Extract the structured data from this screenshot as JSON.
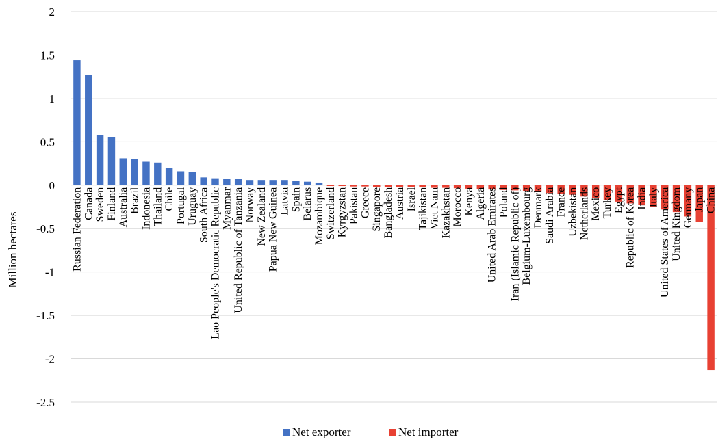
{
  "chart_data": {
    "type": "bar",
    "title": "",
    "xlabel": "",
    "ylabel": "Million hectares",
    "ylim": [
      -2.5,
      2
    ],
    "yticks": [
      2,
      1.5,
      1,
      0.5,
      0,
      -0.5,
      -1,
      -1.5,
      -2,
      -2.5
    ],
    "grid": true,
    "legend_position": "bottom",
    "categories": [
      "Russian Federation",
      "Canada",
      "Sweden",
      "Finland",
      "Australia",
      "Brazil",
      "Indonesia",
      "Thailand",
      "Chile",
      "Portugal",
      "Uruguay",
      "South Africa",
      "Lao People's Democratic Republic",
      "Myanmar",
      "United Republic of Tanzania",
      "Norway",
      "New Zealand",
      "Papua New Guinea",
      "Latvia",
      "Spain",
      "Belarus",
      "Mozambique",
      "Switzerland",
      "Kyrgyzstan",
      "Pakistan",
      "Greece",
      "Singapore",
      "Bangladesh",
      "Austria",
      "Israel",
      "Tajikistan",
      "Viet Nam",
      "Kazakhstan",
      "Morocco",
      "Kenya",
      "Algeria",
      "United Arab Emirates",
      "Poland",
      "Iran (Islamic Republic of)",
      "Belgium-Luxembourg",
      "Denmark",
      "Saudi Arabia",
      "France",
      "Uzbekistan",
      "Netherlands",
      "Mexico",
      "Turkey",
      "Egypt",
      "Republic of Korea",
      "India",
      "Italy",
      "United States of America",
      "United Kingdom",
      "Germany",
      "Japan",
      "China"
    ],
    "series": [
      {
        "name": "Net exporter",
        "color": "#4472C4",
        "values": [
          1.44,
          1.27,
          0.58,
          0.55,
          0.31,
          0.3,
          0.27,
          0.26,
          0.2,
          0.16,
          0.15,
          0.09,
          0.08,
          0.07,
          0.07,
          0.06,
          0.06,
          0.06,
          0.06,
          0.05,
          0.04,
          0.03,
          null,
          null,
          null,
          null,
          null,
          null,
          null,
          null,
          null,
          null,
          null,
          null,
          null,
          null,
          null,
          null,
          null,
          null,
          null,
          null,
          null,
          null,
          null,
          null,
          null,
          null,
          null,
          null,
          null,
          null,
          null,
          null,
          null,
          null
        ]
      },
      {
        "name": "Net importer",
        "color": "#E84133",
        "values": [
          null,
          null,
          null,
          null,
          null,
          null,
          null,
          null,
          null,
          null,
          null,
          null,
          null,
          null,
          null,
          null,
          null,
          null,
          null,
          null,
          null,
          null,
          -0.01,
          -0.01,
          -0.015,
          -0.015,
          -0.02,
          -0.02,
          -0.02,
          -0.025,
          -0.025,
          -0.03,
          -0.03,
          -0.035,
          -0.04,
          -0.045,
          -0.05,
          -0.055,
          -0.06,
          -0.065,
          -0.07,
          -0.09,
          -0.1,
          -0.11,
          -0.13,
          -0.15,
          -0.17,
          -0.19,
          -0.21,
          -0.23,
          -0.25,
          -0.28,
          -0.31,
          -0.36,
          -0.42,
          -2.13
        ]
      }
    ]
  }
}
